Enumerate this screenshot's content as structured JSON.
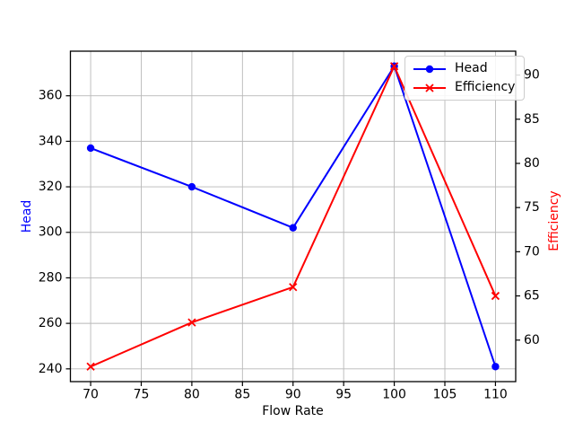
{
  "chart_data": {
    "type": "line",
    "x": [
      70,
      80,
      90,
      100,
      110
    ],
    "series": [
      {
        "name": "Head",
        "axis": "left",
        "color": "#0000ff",
        "marker": "circle",
        "values": [
          337,
          320,
          302,
          373,
          241
        ]
      },
      {
        "name": "Efficiency",
        "axis": "right",
        "color": "#ff0000",
        "marker": "x",
        "values": [
          57,
          62,
          66,
          91,
          65
        ]
      }
    ],
    "title": "",
    "xlabel": "Flow Rate",
    "ylabel_left": "Head",
    "ylabel_right": "Efficiency",
    "xlim": [
      68,
      112
    ],
    "ylim_left": [
      234.4,
      379.6
    ],
    "ylim_right": [
      55.3,
      92.7
    ],
    "xticks": [
      70,
      75,
      80,
      85,
      90,
      95,
      100,
      105,
      110
    ],
    "yticks_left": [
      240,
      260,
      280,
      300,
      320,
      340,
      360
    ],
    "yticks_right": [
      60,
      65,
      70,
      75,
      80,
      85,
      90
    ],
    "grid": true,
    "grid_color": "#b8b8b8",
    "axis_color": "#000000",
    "legend_position": "upper right"
  }
}
